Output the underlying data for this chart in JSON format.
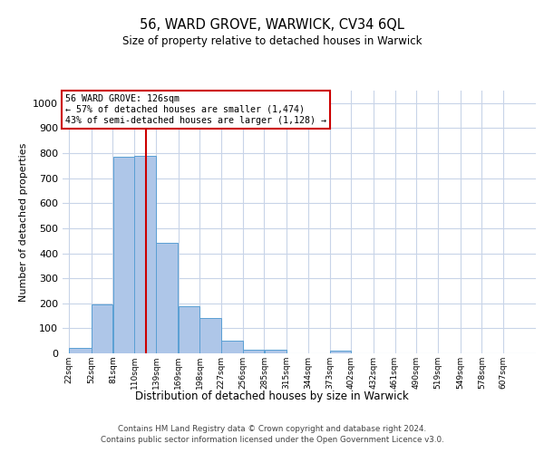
{
  "title1": "56, WARD GROVE, WARWICK, CV34 6QL",
  "title2": "Size of property relative to detached houses in Warwick",
  "xlabel": "Distribution of detached houses by size in Warwick",
  "ylabel": "Number of detached properties",
  "bin_labels": [
    "22sqm",
    "52sqm",
    "81sqm",
    "110sqm",
    "139sqm",
    "169sqm",
    "198sqm",
    "227sqm",
    "256sqm",
    "285sqm",
    "315sqm",
    "344sqm",
    "373sqm",
    "402sqm",
    "432sqm",
    "461sqm",
    "490sqm",
    "519sqm",
    "549sqm",
    "578sqm",
    "607sqm"
  ],
  "bar_heights": [
    20,
    195,
    785,
    790,
    440,
    190,
    140,
    50,
    15,
    15,
    0,
    0,
    10,
    0,
    0,
    0,
    0,
    0,
    0,
    0
  ],
  "bar_color": "#aec6e8",
  "bar_edge_color": "#5a9fd4",
  "ylim": [
    0,
    1050
  ],
  "yticks": [
    0,
    100,
    200,
    300,
    400,
    500,
    600,
    700,
    800,
    900,
    1000
  ],
  "bin_edges": [
    22,
    52,
    81,
    110,
    139,
    169,
    198,
    227,
    256,
    285,
    315,
    344,
    373,
    402,
    432,
    461,
    490,
    519,
    549,
    578,
    607
  ],
  "vline_x": 126,
  "vline_color": "#cc0000",
  "annotation_text": "56 WARD GROVE: 126sqm\n← 57% of detached houses are smaller (1,474)\n43% of semi-detached houses are larger (1,128) →",
  "annotation_box_color": "#ffffff",
  "annotation_box_edge": "#cc0000",
  "footer1": "Contains HM Land Registry data © Crown copyright and database right 2024.",
  "footer2": "Contains public sector information licensed under the Open Government Licence v3.0.",
  "background_color": "#ffffff",
  "grid_color": "#c8d4e8"
}
